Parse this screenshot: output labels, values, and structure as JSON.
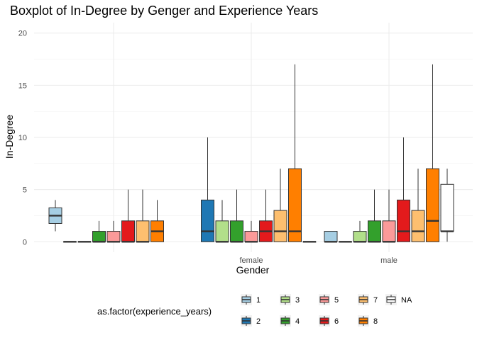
{
  "chart_data": {
    "type": "boxplot",
    "title": "Boxplot of In-Degree by Genger and Experience Years",
    "xlabel": "Gender",
    "ylabel": "In-Degree",
    "categories": [
      "",
      "female",
      "male"
    ],
    "ylim": [
      -1,
      21
    ],
    "yticks": [
      0,
      5,
      10,
      15,
      20
    ],
    "grid": true,
    "legend": {
      "title": "as.factor(experience_years)",
      "placement": "bottom",
      "levels": [
        {
          "label": "1",
          "color": "#a6cee3"
        },
        {
          "label": "2",
          "color": "#1f78b4"
        },
        {
          "label": "3",
          "color": "#b2df8a"
        },
        {
          "label": "4",
          "color": "#33a02c"
        },
        {
          "label": "5",
          "color": "#fb9a99"
        },
        {
          "label": "6",
          "color": "#e31a1c"
        },
        {
          "label": "7",
          "color": "#fdbf6f"
        },
        {
          "label": "8",
          "color": "#ff7f00"
        },
        {
          "label": "NA",
          "color": "#ffffff"
        }
      ]
    },
    "series": [
      {
        "category": "",
        "boxes": [
          {
            "level": "1",
            "lower_whisker": 1,
            "q1": 1.75,
            "median": 2.5,
            "q3": 3.25,
            "upper_whisker": 4
          },
          {
            "level": "2",
            "lower_whisker": 0,
            "q1": 0,
            "median": 0,
            "q3": 0,
            "upper_whisker": 0
          },
          {
            "level": "3",
            "lower_whisker": 0,
            "q1": 0,
            "median": 0,
            "q3": 0,
            "upper_whisker": 0
          },
          {
            "level": "4",
            "lower_whisker": 0,
            "q1": 0,
            "median": 0,
            "q3": 1,
            "upper_whisker": 2
          },
          {
            "level": "5",
            "lower_whisker": 0,
            "q1": 0,
            "median": 0,
            "q3": 1,
            "upper_whisker": 2
          },
          {
            "level": "6",
            "lower_whisker": 0,
            "q1": 0,
            "median": 0,
            "q3": 2,
            "upper_whisker": 5
          },
          {
            "level": "7",
            "lower_whisker": 0,
            "q1": 0,
            "median": 0,
            "q3": 2,
            "upper_whisker": 5
          },
          {
            "level": "8",
            "lower_whisker": 0,
            "q1": 0,
            "median": 1,
            "q3": 2,
            "upper_whisker": 4
          }
        ]
      },
      {
        "category": "female",
        "boxes": [
          {
            "level": "2",
            "lower_whisker": 0,
            "q1": 0,
            "median": 1,
            "q3": 4,
            "upper_whisker": 10
          },
          {
            "level": "3",
            "lower_whisker": 0,
            "q1": 0,
            "median": 0,
            "q3": 2,
            "upper_whisker": 4
          },
          {
            "level": "4",
            "lower_whisker": 0,
            "q1": 0,
            "median": 0,
            "q3": 2,
            "upper_whisker": 5
          },
          {
            "level": "5",
            "lower_whisker": 0,
            "q1": 0,
            "median": 0,
            "q3": 1,
            "upper_whisker": 2
          },
          {
            "level": "6",
            "lower_whisker": 0,
            "q1": 0,
            "median": 1,
            "q3": 2,
            "upper_whisker": 5
          },
          {
            "level": "7",
            "lower_whisker": 0,
            "q1": 0,
            "median": 1,
            "q3": 3,
            "upper_whisker": 7
          },
          {
            "level": "8",
            "lower_whisker": 0,
            "q1": 0,
            "median": 1,
            "q3": 7,
            "upper_whisker": 17
          },
          {
            "level": "NA",
            "lower_whisker": 0,
            "q1": 0,
            "median": 0,
            "q3": 0,
            "upper_whisker": 0
          }
        ]
      },
      {
        "category": "male",
        "boxes": [
          {
            "level": "1",
            "lower_whisker": 0,
            "q1": 0,
            "median": 0,
            "q3": 1,
            "upper_whisker": 1
          },
          {
            "level": "2",
            "lower_whisker": 0,
            "q1": 0,
            "median": 0,
            "q3": 0,
            "upper_whisker": 0
          },
          {
            "level": "3",
            "lower_whisker": 0,
            "q1": 0,
            "median": 0,
            "q3": 1,
            "upper_whisker": 2
          },
          {
            "level": "4",
            "lower_whisker": 0,
            "q1": 0,
            "median": 0,
            "q3": 2,
            "upper_whisker": 5
          },
          {
            "level": "5",
            "lower_whisker": 0,
            "q1": 0,
            "median": 0,
            "q3": 2,
            "upper_whisker": 5
          },
          {
            "level": "6",
            "lower_whisker": 0,
            "q1": 0,
            "median": 1,
            "q3": 4,
            "upper_whisker": 10
          },
          {
            "level": "7",
            "lower_whisker": 0,
            "q1": 0,
            "median": 1,
            "q3": 3,
            "upper_whisker": 7
          },
          {
            "level": "8",
            "lower_whisker": 0,
            "q1": 0,
            "median": 2,
            "q3": 7,
            "upper_whisker": 17
          },
          {
            "level": "NA",
            "lower_whisker": 0,
            "q1": 1,
            "median": 1,
            "q3": 5.5,
            "upper_whisker": 7
          }
        ]
      }
    ]
  }
}
